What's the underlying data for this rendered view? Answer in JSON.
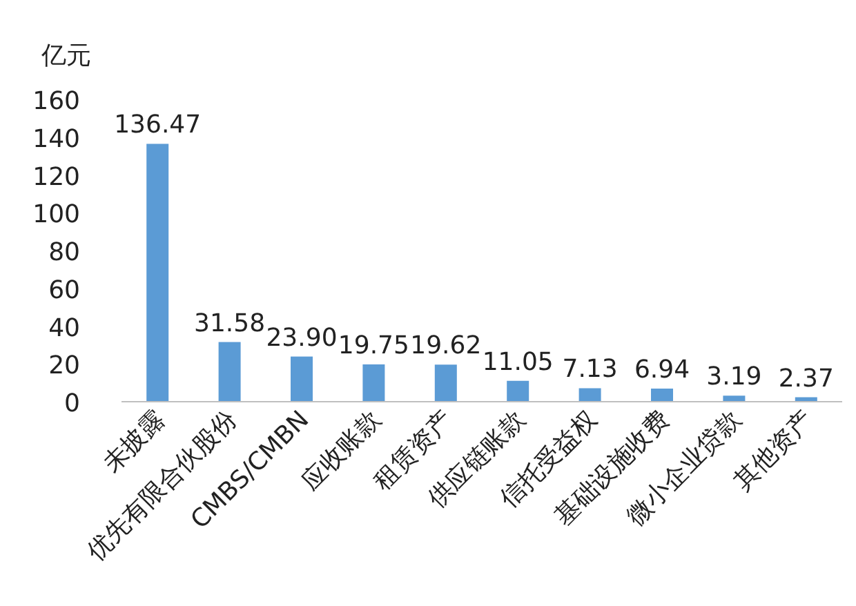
{
  "chart_data": {
    "type": "bar",
    "ylabel": "亿元",
    "categories": [
      "未披露",
      "优先有限合伙股份",
      "CMBS/CMBN",
      "应收账款",
      "租赁资产",
      "供应链账款",
      "信托受益权",
      "基础设施收费",
      "微小企业贷款",
      "其他资产"
    ],
    "values": [
      136.47,
      31.58,
      23.9,
      19.75,
      19.62,
      11.05,
      7.13,
      6.94,
      3.19,
      2.37
    ],
    "value_labels": [
      "136.47",
      "31.58",
      "23.90",
      "19.75",
      "19.62",
      "11.05",
      "7.13",
      "6.94",
      "3.19",
      "2.37"
    ],
    "color": "#5b9bd5",
    "ylim": [
      0,
      160
    ],
    "yticks": [
      0,
      20,
      40,
      60,
      80,
      100,
      120,
      140,
      160
    ],
    "grid": false
  }
}
